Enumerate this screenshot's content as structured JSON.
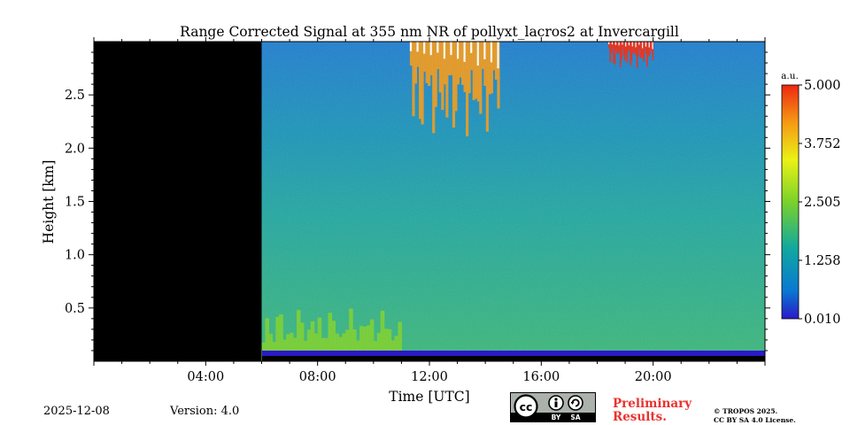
{
  "chart_data": {
    "type": "heatmap",
    "title": "Range Corrected Signal at 355 nm NR of pollyxt_lacros2 at Invercargill",
    "xlabel": "Time [UTC]",
    "ylabel": "Height [km]",
    "xlim_hours": [
      0,
      24
    ],
    "ylim_km": [
      0,
      3.0
    ],
    "x_ticks": [
      {
        "value": 4,
        "label": "04:00"
      },
      {
        "value": 8,
        "label": "08:00"
      },
      {
        "value": 12,
        "label": "12:00"
      },
      {
        "value": 16,
        "label": "16:00"
      },
      {
        "value": 20,
        "label": "20:00"
      }
    ],
    "y_ticks": [
      {
        "value": 0.5,
        "label": "0.5"
      },
      {
        "value": 1.0,
        "label": "1.0"
      },
      {
        "value": 1.5,
        "label": "1.5"
      },
      {
        "value": 2.0,
        "label": "2.0"
      },
      {
        "value": 2.5,
        "label": "2.5"
      }
    ],
    "colorbar": {
      "unit": "a.u.",
      "min": 0.01,
      "max": 5.0,
      "ticks": [
        "5.000",
        "3.752",
        "2.505",
        "1.258",
        "0.010"
      ],
      "colormap": [
        "#2a19c8",
        "#0a78d2",
        "#10a8a0",
        "#7ad22a",
        "#eaf214",
        "#f59a14",
        "#ee2810"
      ]
    },
    "no_data_period_hours": [
      0,
      6
    ],
    "features": [
      {
        "name": "aerosol layer",
        "time_hours": [
          6,
          11
        ],
        "height_km": [
          0,
          0.5
        ],
        "value": 2.2
      },
      {
        "name": "cloud",
        "time_hours": [
          11.3,
          14.5
        ],
        "height_km": [
          2.1,
          3.0
        ],
        "value": 4.5
      },
      {
        "name": "cloud",
        "time_hours": [
          18.4,
          20.0
        ],
        "height_km": [
          2.75,
          3.0
        ],
        "value": 4.8
      }
    ],
    "background_value": 1.0
  },
  "footer": {
    "date": "2025-12-08",
    "version": "Version: 4.0",
    "preliminary": "Preliminary Results.",
    "copyright_line1": "© TROPOS 2025.",
    "copyright_line2": "CC BY SA 4.0 License.",
    "cc_badge": {
      "cc": "cc",
      "by": "BY",
      "sa": "SA"
    }
  }
}
